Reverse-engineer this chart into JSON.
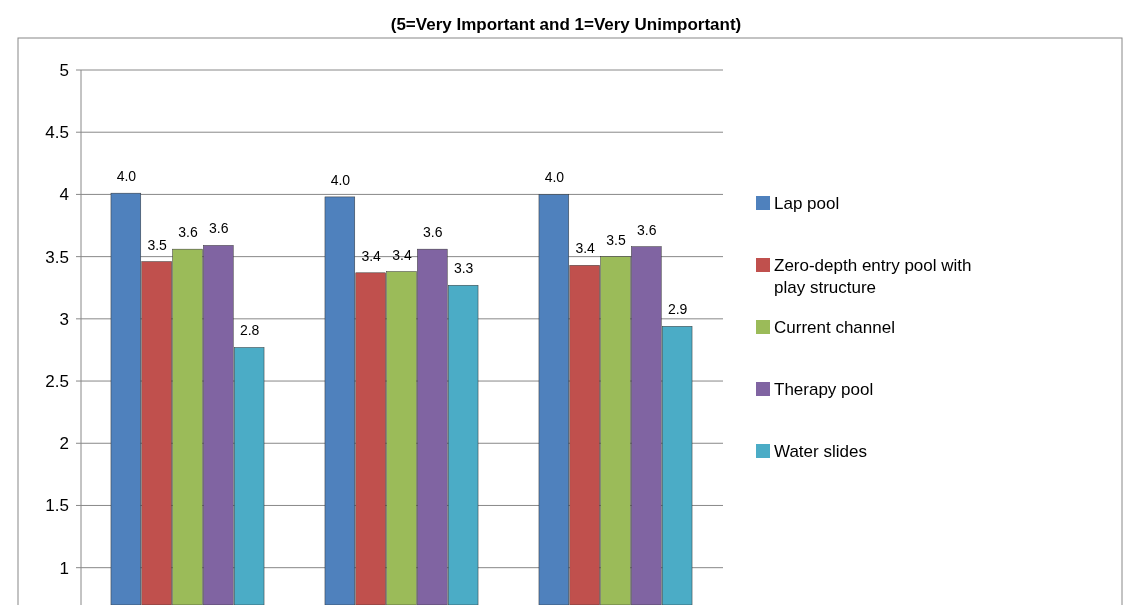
{
  "chart_data": {
    "type": "bar",
    "title": "(5=Very Important and 1=Very Unimportant)",
    "categories": [
      null,
      null,
      null
    ],
    "series": [
      {
        "name": "Lap pool",
        "color": "#4f81bd",
        "values": [
          4.01,
          3.98,
          4.0
        ],
        "value_labels": [
          "4.0",
          "4.0",
          "4.0"
        ]
      },
      {
        "name": "Zero-depth entry pool with play structure",
        "color": "#c0504d",
        "values": [
          3.46,
          3.37,
          3.43
        ],
        "value_labels": [
          "3.5",
          "3.4",
          "3.4"
        ]
      },
      {
        "name": "Current channel",
        "color": "#9bbb59",
        "values": [
          3.56,
          3.38,
          3.5
        ],
        "value_labels": [
          "3.6",
          "3.4",
          "3.5"
        ]
      },
      {
        "name": "Therapy pool",
        "color": "#8064a2",
        "values": [
          3.59,
          3.56,
          3.58
        ],
        "value_labels": [
          "3.6",
          "3.6",
          "3.6"
        ]
      },
      {
        "name": "Water slides",
        "color": "#4bacc6",
        "values": [
          2.77,
          3.27,
          2.94
        ],
        "value_labels": [
          "2.8",
          "3.3",
          "2.9"
        ]
      }
    ],
    "ylim": [
      0.7,
      5
    ],
    "yticks": [
      1,
      1.5,
      2,
      2.5,
      3,
      3.5,
      4,
      4.5,
      5
    ],
    "grid": "y",
    "legend": "right"
  }
}
